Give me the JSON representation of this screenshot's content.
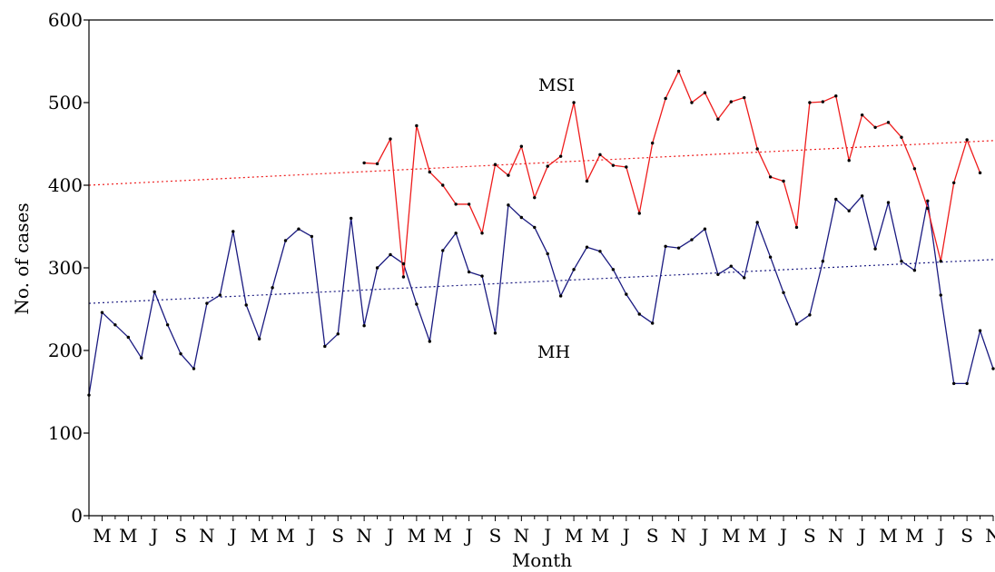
{
  "chart_data": {
    "type": "line",
    "title": "",
    "xlabel": "Month",
    "ylabel": "No. of cases",
    "ylim": [
      0,
      600
    ],
    "yticks": [
      0,
      100,
      200,
      300,
      400,
      500,
      600
    ],
    "grid": false,
    "x_tick_labels": [
      "M",
      "M",
      "J",
      "S",
      "N",
      "J",
      "M",
      "M",
      "J",
      "S",
      "N",
      "J",
      "M",
      "M",
      "J",
      "S",
      "N",
      "J",
      "M",
      "M",
      "J",
      "S",
      "N",
      "J",
      "M",
      "M",
      "J",
      "S",
      "N",
      "J",
      "M",
      "M",
      "J",
      "S",
      "N"
    ],
    "series": [
      {
        "name": "MH",
        "color": "#1a1a80",
        "trend": [
          257,
          310
        ],
        "values": [
          146,
          246,
          231,
          216,
          191,
          271,
          231,
          196,
          178,
          257,
          267,
          344,
          255,
          214,
          276,
          333,
          347,
          338,
          205,
          220,
          360,
          230,
          300,
          316,
          305,
          256,
          211,
          321,
          342,
          295,
          290,
          221,
          376,
          361,
          349,
          317,
          266,
          298,
          325,
          320,
          298,
          268,
          244,
          233,
          326,
          324,
          334,
          347,
          292,
          302,
          288,
          355,
          313,
          270,
          232,
          243,
          308,
          383,
          369,
          387,
          323,
          379,
          308,
          297,
          381,
          267,
          160,
          160,
          224,
          178
        ]
      },
      {
        "name": "MSI",
        "color": "#ee1c1c",
        "trend": [
          400,
          454
        ],
        "start_index": 21,
        "values": [
          427,
          426,
          456,
          289,
          472,
          416,
          400,
          377,
          377,
          342,
          425,
          412,
          447,
          385,
          423,
          435,
          500,
          405,
          437,
          424,
          422,
          366,
          451,
          505,
          538,
          500,
          512,
          480,
          501,
          506,
          444,
          410,
          405,
          349,
          500,
          501,
          508,
          430,
          485,
          470,
          476,
          458,
          420,
          372,
          308,
          403,
          455,
          415
        ]
      }
    ]
  }
}
